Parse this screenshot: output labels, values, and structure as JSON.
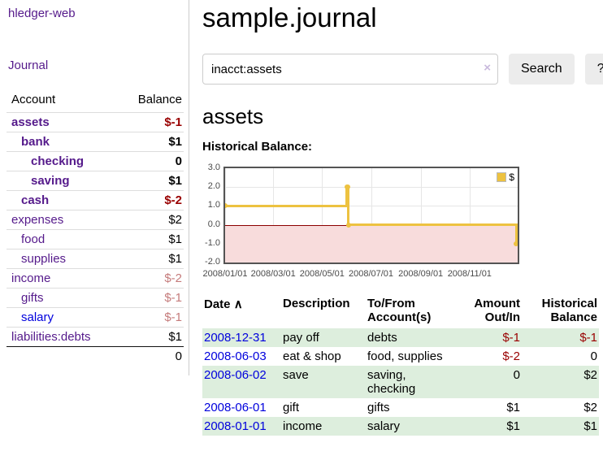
{
  "colors": {
    "link_visited": "#551a8b",
    "link": "#0000dd",
    "negative_strong": "#990000",
    "negative_weak": "#c57b7b",
    "row_highlight": "#ddeedd",
    "chart_line": "#edc240",
    "chart_negative_fill": "#f8dcdc",
    "chart_zero_line": "#8b0000"
  },
  "sidebar": {
    "app_title": "hledger-web",
    "journal_label": "Journal",
    "accounts_header": {
      "account": "Account",
      "balance": "Balance"
    },
    "accounts": [
      {
        "name": "assets",
        "indent": 1,
        "emph": true,
        "link": "visited",
        "balance": "$-1",
        "tone": "neg-strong"
      },
      {
        "name": "bank",
        "indent": 2,
        "emph": true,
        "link": "visited",
        "balance": "$1",
        "tone": "normal"
      },
      {
        "name": "checking",
        "indent": 3,
        "emph": true,
        "link": "visited",
        "balance": "0",
        "tone": "normal"
      },
      {
        "name": "saving",
        "indent": 3,
        "emph": true,
        "link": "visited",
        "balance": "$1",
        "tone": "normal"
      },
      {
        "name": "cash",
        "indent": 2,
        "emph": true,
        "link": "visited",
        "balance": "$-2",
        "tone": "neg-strong"
      },
      {
        "name": "expenses",
        "indent": 1,
        "emph": false,
        "link": "visited",
        "balance": "$2",
        "tone": "normal"
      },
      {
        "name": "food",
        "indent": 2,
        "emph": false,
        "link": "visited",
        "balance": "$1",
        "tone": "normal"
      },
      {
        "name": "supplies",
        "indent": 2,
        "emph": false,
        "link": "visited",
        "balance": "$1",
        "tone": "normal"
      },
      {
        "name": "income",
        "indent": 1,
        "emph": false,
        "link": "visited",
        "balance": "$-2",
        "tone": "neg-weak"
      },
      {
        "name": "gifts",
        "indent": 2,
        "emph": false,
        "link": "visited",
        "balance": "$-1",
        "tone": "neg-weak"
      },
      {
        "name": "salary",
        "indent": 2,
        "emph": false,
        "link": "unvisited",
        "balance": "$-1",
        "tone": "neg-weak"
      },
      {
        "name": "liabilities:debts",
        "indent": 1,
        "emph": false,
        "link": "visited",
        "balance": "$1",
        "tone": "normal"
      }
    ],
    "total": "0"
  },
  "main": {
    "title": "sample.journal",
    "search": {
      "value": "inacct:assets",
      "clear_icon": "×",
      "button_label": "Search",
      "help_label": "?"
    },
    "account_heading": "assets",
    "chart_label": "Historical Balance:"
  },
  "chart_data": {
    "type": "line",
    "step": true,
    "title": "Historical Balance:",
    "series": [
      {
        "name": "$",
        "points": [
          [
            "2008-01-01",
            1
          ],
          [
            "2008-06-01",
            2
          ],
          [
            "2008-06-02",
            2
          ],
          [
            "2008-06-03",
            0
          ],
          [
            "2008-12-31",
            -1
          ]
        ]
      }
    ],
    "ylim": [
      -2,
      3
    ],
    "yticks": [
      "3.0",
      "2.0",
      "1.0",
      "0.0",
      "-1.0",
      "-2.0"
    ],
    "xticks": [
      "2008/01/01",
      "2008/03/01",
      "2008/05/01",
      "2008/07/01",
      "2008/09/01",
      "2008/11/01"
    ],
    "x_range": [
      "2008-01-01",
      "2008-12-31"
    ],
    "grid": true,
    "legend_position": "top-right",
    "legend_label": "$"
  },
  "register": {
    "headers": {
      "date": "Date",
      "sort_icon": "∧",
      "description": "Description",
      "accounts": "To/From Account(s)",
      "amount": "Amount Out/In",
      "balance": "Historical Balance"
    },
    "rows": [
      {
        "date": "2008-12-31",
        "description": "pay off",
        "accounts": "debts",
        "amount": "$-1",
        "amount_neg": true,
        "balance": "$-1",
        "balance_neg": true,
        "highlight": true
      },
      {
        "date": "2008-06-03",
        "description": "eat & shop",
        "accounts": "food, supplies",
        "amount": "$-2",
        "amount_neg": true,
        "balance": "0",
        "balance_neg": false,
        "highlight": false
      },
      {
        "date": "2008-06-02",
        "description": "save",
        "accounts": "saving, checking",
        "amount": "0",
        "amount_neg": false,
        "balance": "$2",
        "balance_neg": false,
        "highlight": true
      },
      {
        "date": "2008-06-01",
        "description": "gift",
        "accounts": "gifts",
        "amount": "$1",
        "amount_neg": false,
        "balance": "$2",
        "balance_neg": false,
        "highlight": false
      },
      {
        "date": "2008-01-01",
        "description": "income",
        "accounts": "salary",
        "amount": "$1",
        "amount_neg": false,
        "balance": "$1",
        "balance_neg": false,
        "highlight": true
      }
    ]
  }
}
